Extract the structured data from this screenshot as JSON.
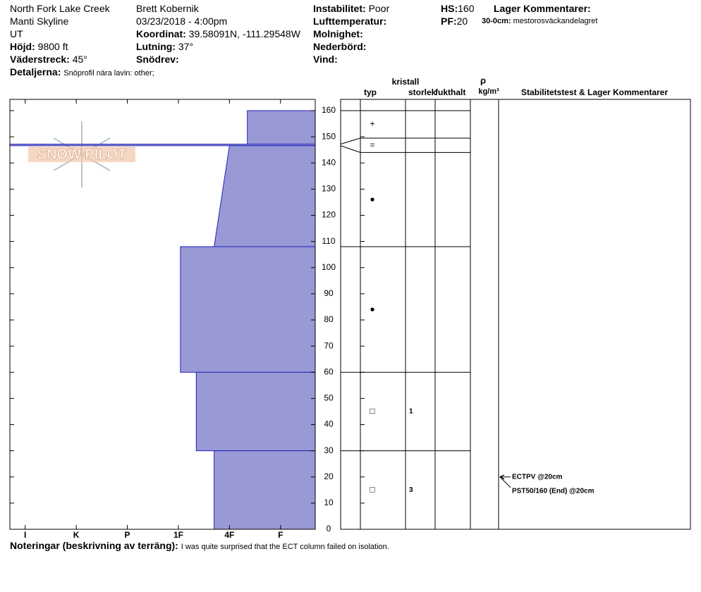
{
  "header": {
    "location": "North Fork Lake Creek",
    "range": "Manti Skyline",
    "state": "UT",
    "elevation": {
      "label": "Höjd:",
      "value": "9800 ft"
    },
    "aspect": {
      "label": "Väderstreck:",
      "value": "45°"
    },
    "details": {
      "label": "Detaljerna:",
      "value": "Snöprofil nära lavin: other;"
    },
    "observer": "Brett Kobernik",
    "datetime": "03/23/2018 - 4:00pm",
    "coordinates": {
      "label": "Koordinat:",
      "value": "39.58091N, -111.29548W"
    },
    "slope": {
      "label": "Lutning:",
      "value": "37°"
    },
    "wind_loading": {
      "label": "Snödrev:"
    },
    "instability": {
      "label": "Instabilitet:",
      "value": "Poor"
    },
    "air_temperature": {
      "label": "Lufttemperatur:"
    },
    "sky": {
      "label": "Molnighet:"
    },
    "precipitation": {
      "label": "Nederbörd:"
    },
    "wind": {
      "label": "Vind:"
    },
    "hs": {
      "label": "HS:",
      "value": "160"
    },
    "pf": {
      "label": "PF:",
      "value": "20"
    },
    "layer_comments": {
      "label": "Lager Kommentarer:",
      "items": [
        {
          "range": "30-0cm:",
          "text": "mestorosväckandelagret"
        }
      ]
    }
  },
  "logo": "SNOW PILOT",
  "table_headers": {
    "crystal": "kristall",
    "type": "typ",
    "size": "storlek",
    "moisture": "fukthalt",
    "rho": "ρ",
    "density": "kg/m³",
    "stability": "Stabilitetstest & Lager Kommentarer"
  },
  "profile": {
    "height_lim": [
      0,
      164.3
    ],
    "height_ticks": [
      0,
      10,
      20,
      30,
      40,
      50,
      60,
      70,
      80,
      90,
      100,
      110,
      120,
      130,
      140,
      150,
      160
    ],
    "hardness_lim": [
      6.3,
      0.32
    ],
    "hardness_ticks": [
      {
        "value": 6,
        "label": "I"
      },
      {
        "value": 5,
        "label": "K"
      },
      {
        "value": 4,
        "label": "P"
      },
      {
        "value": 3,
        "label": "1F"
      },
      {
        "value": 2,
        "label": "4F"
      },
      {
        "value": 1,
        "label": "F"
      }
    ],
    "layers": [
      {
        "top": 160,
        "bottom": 147.2,
        "hardness_top": 1.65,
        "hardness_bottom": 1.65,
        "table_top": 160,
        "table_bottom": 149.5,
        "grain": "+"
      },
      {
        "top": 147.2,
        "bottom": 146.6,
        "hardness_top": 6.3,
        "hardness_bottom": 6.3,
        "table_top": 149.5,
        "table_bottom": 144,
        "grain": "="
      },
      {
        "top": 146.6,
        "bottom": 108,
        "hardness_top": 2.0,
        "hardness_bottom": 2.3,
        "table_top": 144,
        "table_bottom": 108,
        "grain": "●"
      },
      {
        "top": 108,
        "bottom": 60,
        "hardness_top": 2.96,
        "hardness_bottom": 2.96,
        "table_top": 108,
        "table_bottom": 60,
        "grain": "●"
      },
      {
        "top": 60,
        "bottom": 30,
        "hardness_top": 2.65,
        "hardness_bottom": 2.65,
        "table_top": 60,
        "table_bottom": 30,
        "grain": "□",
        "size": "1"
      },
      {
        "top": 30,
        "bottom": 0,
        "hardness_top": 2.3,
        "hardness_bottom": 2.3,
        "table_top": 30,
        "table_bottom": 0,
        "grain": "□",
        "size": "3"
      }
    ],
    "tests": [
      {
        "height": 20,
        "label": "ECTPV @20cm"
      },
      {
        "height": 20,
        "label": "PST50/160 (End) @20cm"
      }
    ]
  },
  "notes": {
    "label": "Noteringar (beskrivning av terräng):",
    "text": "I was quite surprised that the ECT column failed on isolation."
  }
}
